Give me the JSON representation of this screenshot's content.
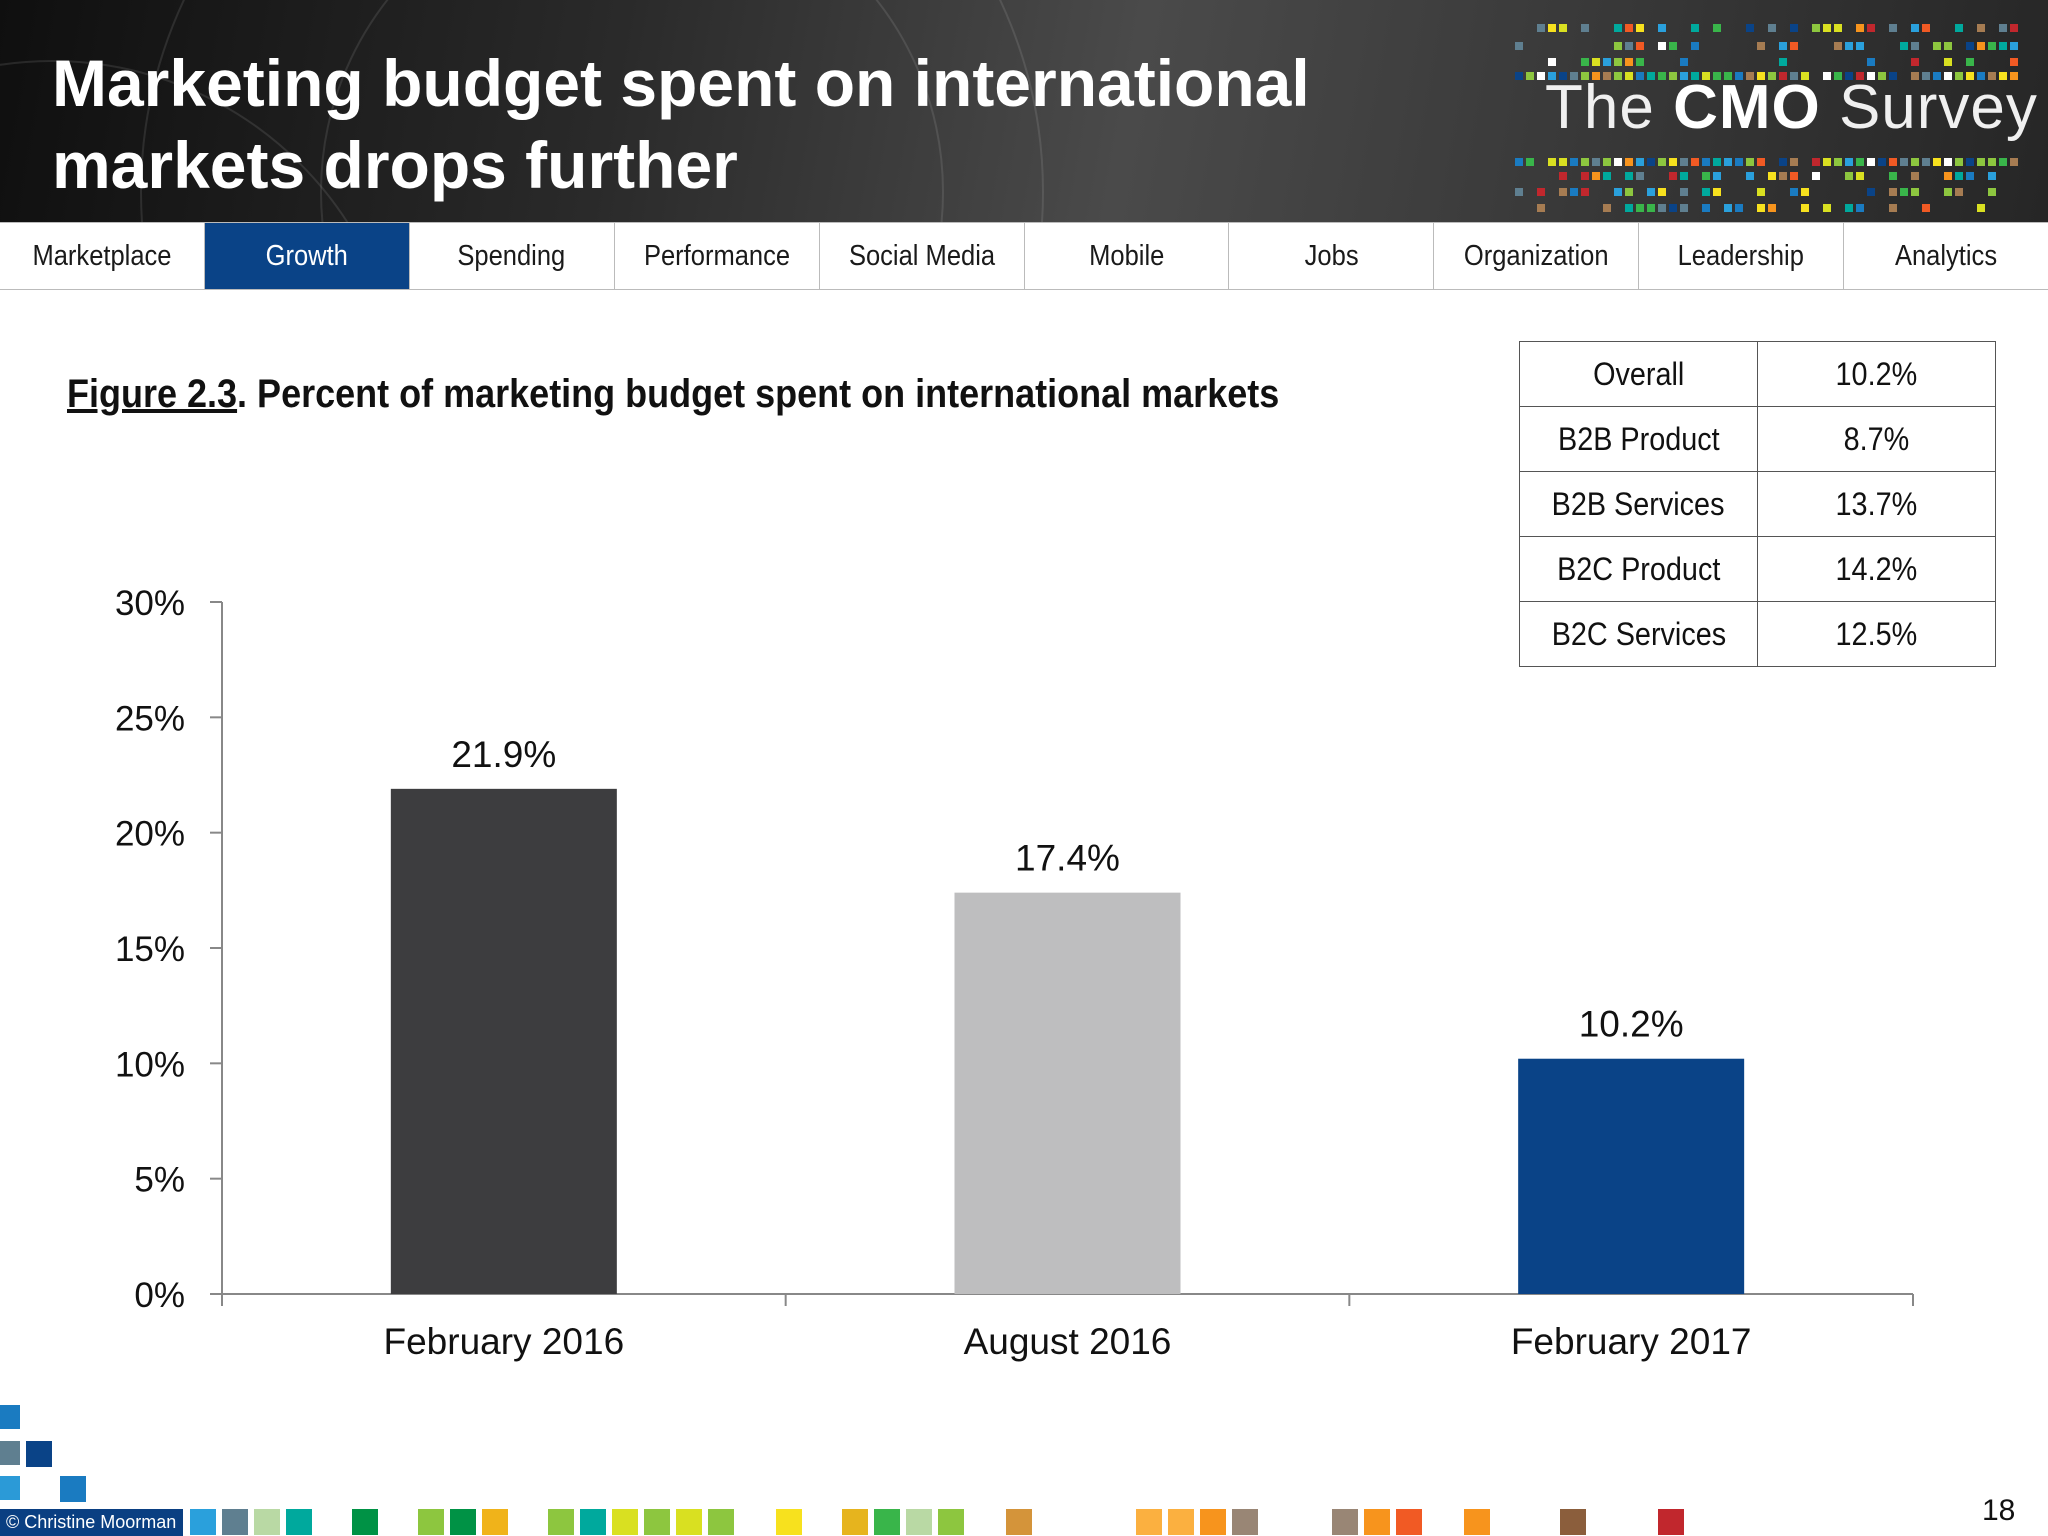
{
  "slide": {
    "title": "Marketing budget spent on international\nmarkets drops further",
    "page_number": "18",
    "copyright": "© Christine Moorman"
  },
  "logo": {
    "pre": "The ",
    "bold": "CMO",
    "post": " Survey"
  },
  "nav": {
    "tabs": [
      {
        "label": "Marketplace",
        "active": false
      },
      {
        "label": "Growth",
        "active": true
      },
      {
        "label": "Spending",
        "active": false
      },
      {
        "label": "Performance",
        "active": false
      },
      {
        "label": "Social Media",
        "active": false
      },
      {
        "label": "Mobile",
        "active": false
      },
      {
        "label": "Jobs",
        "active": false
      },
      {
        "label": "Organization",
        "active": false
      },
      {
        "label": "Leadership",
        "active": false
      },
      {
        "label": "Analytics",
        "active": false
      }
    ],
    "active_color": "#0a4387"
  },
  "figure": {
    "number": "Figure 2.3",
    "caption": ".  Percent of marketing budget spent on international markets"
  },
  "segment_table": [
    {
      "segment": "Overall",
      "value": "10.2%"
    },
    {
      "segment": "B2B Product",
      "value": "8.7%"
    },
    {
      "segment": "B2B Services",
      "value": "13.7%"
    },
    {
      "segment": "B2C Product",
      "value": "14.2%"
    },
    {
      "segment": "B2C Services",
      "value": "12.5%"
    }
  ],
  "chart_data": {
    "type": "bar",
    "categories": [
      "February 2016",
      "August 2016",
      "February 2017"
    ],
    "values": [
      21.9,
      17.4,
      10.2
    ],
    "data_labels": [
      "21.9%",
      "17.4%",
      "10.2%"
    ],
    "colors": [
      "#3d3d3f",
      "#bebebf",
      "#0a4387"
    ],
    "ylim": [
      0,
      30
    ],
    "yticks": [
      0,
      5,
      10,
      15,
      20,
      25,
      30
    ],
    "ytick_labels": [
      "0%",
      "5%",
      "10%",
      "15%",
      "20%",
      "25%",
      "30%"
    ],
    "grid": false,
    "legend": "none"
  }
}
